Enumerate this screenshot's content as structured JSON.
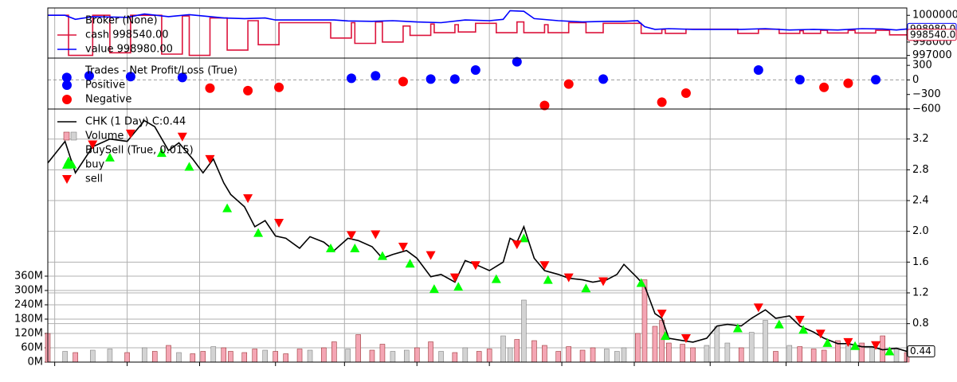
{
  "chart_data": [
    {
      "type": "line",
      "legend_title": "Broker (None)",
      "grid": "x",
      "xlim": [
        0,
        249
      ],
      "xticks": [
        2,
        23,
        44,
        66,
        86,
        107,
        128,
        149,
        170,
        192,
        214,
        235
      ],
      "ylim": [
        996800,
        1000550
      ],
      "yticks": [
        997000,
        998000,
        999000,
        1000000
      ],
      "series": [
        {
          "name": "cash 998540.00",
          "color": "#dc143c",
          "last_value_label": "998540.0",
          "x": [
            0,
            6,
            6,
            13,
            13,
            18,
            18,
            24,
            24,
            33,
            33,
            39,
            39,
            41,
            41,
            47,
            47,
            52,
            52,
            58,
            58,
            61,
            61,
            67,
            67,
            82,
            82,
            88,
            88,
            89,
            89,
            95,
            95,
            97,
            97,
            103,
            103,
            105,
            105,
            111,
            111,
            112,
            112,
            118,
            118,
            119,
            119,
            124,
            124,
            130,
            130,
            136,
            136,
            138,
            138,
            144,
            144,
            145,
            145,
            151,
            151,
            156,
            156,
            161,
            161,
            172,
            172,
            178,
            178,
            179,
            179,
            185,
            185,
            200,
            200,
            206,
            206,
            212,
            212,
            218,
            218,
            219,
            219,
            224,
            224,
            226,
            226,
            232,
            232,
            234,
            234,
            240,
            240,
            244,
            244,
            249
          ],
          "values": [
            1000000,
            1000000,
            997000,
            997000,
            1000000,
            1000000,
            997200,
            997200,
            1000000,
            1000000,
            997100,
            997100,
            999950,
            999950,
            997000,
            997000,
            999800,
            999800,
            997400,
            997400,
            999600,
            999600,
            997800,
            997800,
            999450,
            999450,
            998300,
            998300,
            999450,
            999450,
            997900,
            997900,
            999500,
            999500,
            998000,
            998000,
            999200,
            999200,
            998500,
            998500,
            999350,
            999350,
            998700,
            998700,
            999300,
            999300,
            998750,
            998750,
            999400,
            999400,
            998700,
            998700,
            999500,
            999500,
            998700,
            998700,
            999300,
            999300,
            998700,
            998700,
            999450,
            999450,
            998700,
            998700,
            999400,
            999400,
            998650,
            998650,
            998950,
            998950,
            998650,
            998650,
            998960,
            998960,
            998650,
            998650,
            998960,
            998960,
            998650,
            998650,
            998850,
            998850,
            998650,
            998650,
            998880,
            998880,
            998680,
            998680,
            998880,
            998880,
            998680,
            998680,
            998880,
            998880,
            998540,
            998540
          ]
        },
        {
          "name": "value 998980.00",
          "color": "#0000ff",
          "last_value_label": "998980.0",
          "x": [
            0,
            5,
            8,
            13,
            23,
            28,
            35,
            41,
            45,
            51,
            57,
            63,
            66,
            73,
            83,
            87,
            94,
            100,
            107,
            114,
            121,
            128,
            132,
            134,
            138,
            141,
            148,
            155,
            162,
            167,
            171,
            173,
            176,
            180,
            187,
            197,
            201,
            208,
            215,
            222,
            229,
            236,
            242,
            246,
            249
          ],
          "values": [
            1000000,
            1000000,
            999700,
            999900,
            999850,
            1000100,
            999900,
            1000050,
            999950,
            999800,
            999750,
            999800,
            999650,
            999650,
            999650,
            999580,
            999550,
            999600,
            999500,
            999450,
            999650,
            999600,
            999700,
            1000350,
            1000300,
            999750,
            999600,
            999500,
            999550,
            999550,
            999600,
            999150,
            998950,
            999000,
            998950,
            998950,
            998950,
            999000,
            998900,
            998950,
            998900,
            999000,
            998980,
            998900,
            998980
          ]
        }
      ]
    },
    {
      "type": "scatter",
      "legend_title": "Trades - Net Profit/Loss (True)",
      "grid": "x",
      "zero_line": true,
      "xlim": [
        0,
        249
      ],
      "xticks": [
        2,
        23,
        44,
        66,
        86,
        107,
        128,
        149,
        170,
        192,
        214,
        235
      ],
      "ylim": [
        -600,
        450
      ],
      "yticks": [
        {
          "value": -600,
          "label": "−600"
        },
        {
          "value": -300,
          "label": "−300"
        },
        0,
        300
      ],
      "series": [
        {
          "name": "Positive",
          "color": "#0000ff",
          "marker": "circle",
          "x": [
            5.5,
            12,
            24,
            39,
            88,
            95,
            111,
            118,
            124,
            136,
            161,
            206,
            218,
            240
          ],
          "values": [
            51,
            85,
            68,
            51,
            34,
            85,
            17,
            17,
            204,
            374,
            17,
            204,
            5,
            5
          ]
        },
        {
          "name": "Negative",
          "color": "#ff0000",
          "marker": "circle",
          "x": [
            47,
            58,
            67,
            103,
            144,
            151,
            178,
            185,
            225,
            232
          ],
          "values": [
            -170,
            -221,
            -153,
            -34,
            -527,
            -85,
            -459,
            -272,
            -153,
            -68
          ]
        }
      ]
    },
    {
      "type": "line",
      "indicator_title": "BuySell (True, 0.015)",
      "grid": "both",
      "xlim": [
        0,
        249
      ],
      "xticks": [
        2,
        23,
        44,
        66,
        86,
        107,
        128,
        149,
        170,
        192,
        214,
        235
      ],
      "ylim": [
        0.3,
        3.59
      ],
      "yticks": [
        0.8,
        1.2,
        1.6,
        {
          "value": 2,
          "label": "2.0"
        },
        2.4,
        2.8,
        3.2
      ],
      "y2lim": [
        0,
        1060
      ],
      "y2ticks": [
        {
          "value": 0,
          "label": "0M"
        },
        {
          "value": 60,
          "label": "60M"
        },
        {
          "value": 120,
          "label": "120M"
        },
        {
          "value": 180,
          "label": "180M"
        },
        {
          "value": 240,
          "label": "240M"
        },
        {
          "value": 300,
          "label": "300M"
        },
        {
          "value": 360,
          "label": "360M"
        }
      ],
      "series": [
        {
          "name": "CHK (1 Day) C:0.44",
          "color": "#000000",
          "last_value_label": "0.44",
          "x": [
            0,
            5,
            8,
            13,
            18,
            23,
            28,
            31,
            35,
            38,
            42,
            45,
            48,
            51,
            53,
            57,
            60,
            63,
            66,
            69,
            73,
            76,
            80,
            83,
            87,
            90,
            94,
            97,
            100,
            104,
            107,
            111,
            114,
            118,
            121,
            125,
            128,
            132,
            134,
            136,
            138,
            141,
            144,
            148,
            151,
            155,
            158,
            162,
            165,
            167,
            171,
            173,
            176,
            178,
            180,
            184,
            187,
            191,
            194,
            197,
            201,
            204,
            208,
            211,
            215,
            218,
            222,
            225,
            229,
            232,
            236,
            239,
            242,
            246,
            249
          ],
          "values": [
            2.89,
            3.17,
            2.76,
            3.1,
            3.2,
            3.17,
            3.44,
            3.36,
            3.05,
            3.15,
            2.94,
            2.76,
            2.94,
            2.63,
            2.48,
            2.32,
            2.06,
            2.14,
            1.94,
            1.91,
            1.78,
            1.93,
            1.86,
            1.75,
            1.91,
            1.88,
            1.8,
            1.65,
            1.7,
            1.75,
            1.65,
            1.41,
            1.44,
            1.34,
            1.62,
            1.55,
            1.49,
            1.6,
            1.91,
            1.86,
            2.06,
            1.65,
            1.49,
            1.44,
            1.39,
            1.37,
            1.34,
            1.37,
            1.44,
            1.57,
            1.39,
            1.29,
            0.93,
            0.87,
            0.61,
            0.58,
            0.56,
            0.61,
            0.77,
            0.79,
            0.77,
            0.87,
            0.98,
            0.87,
            0.9,
            0.77,
            0.69,
            0.61,
            0.54,
            0.54,
            0.5,
            0.5,
            0.46,
            0.48,
            0.44
          ]
        },
        {
          "name": "Volume",
          "type": "bar",
          "axis": "y2",
          "color": "#f4a6b4",
          "up_color": "#d3d3d3",
          "x": [
            0,
            5,
            8,
            13,
            18,
            23,
            28,
            31,
            35,
            38,
            42,
            45,
            48,
            51,
            53,
            57,
            60,
            63,
            66,
            69,
            73,
            76,
            80,
            83,
            87,
            90,
            94,
            97,
            100,
            104,
            107,
            111,
            114,
            118,
            121,
            125,
            128,
            132,
            134,
            136,
            138,
            141,
            144,
            148,
            151,
            155,
            158,
            162,
            165,
            167,
            171,
            173,
            176,
            178,
            180,
            184,
            187,
            191,
            194,
            197,
            201,
            204,
            208,
            211,
            215,
            218,
            222,
            225,
            229,
            232,
            236,
            239,
            242,
            246,
            249
          ],
          "values": [
            120,
            45,
            40,
            50,
            55,
            40,
            60,
            45,
            70,
            40,
            35,
            45,
            65,
            60,
            45,
            40,
            55,
            50,
            45,
            35,
            55,
            50,
            60,
            85,
            55,
            115,
            50,
            75,
            45,
            50,
            60,
            85,
            45,
            40,
            60,
            45,
            55,
            110,
            60,
            95,
            260,
            90,
            70,
            45,
            65,
            50,
            60,
            55,
            45,
            60,
            120,
            345,
            150,
            175,
            80,
            75,
            60,
            70,
            150,
            80,
            60,
            125,
            175,
            45,
            70,
            65,
            55,
            50,
            90,
            70,
            80,
            60,
            110,
            55,
            40
          ]
        },
        {
          "name": "buy",
          "type": "scatter",
          "marker": "triangle-up",
          "color": "#00ff00",
          "x": [
            6,
            7,
            18,
            33,
            41,
            52,
            61,
            82,
            89,
            97,
            105,
            112,
            119,
            130,
            138,
            145,
            156,
            172,
            179,
            200,
            212,
            219,
            226,
            234,
            244
          ],
          "values": [
            2.91,
            2.87,
            2.96,
            3.02,
            2.84,
            2.3,
            1.98,
            1.78,
            1.78,
            1.68,
            1.58,
            1.25,
            1.28,
            1.38,
            1.91,
            1.37,
            1.26,
            1.33,
            0.64,
            0.74,
            0.79,
            0.72,
            0.55,
            0.51,
            0.44
          ]
        },
        {
          "name": "sell",
          "type": "scatter",
          "marker": "triangle-down",
          "color": "#ff0000",
          "x": [
            13,
            24,
            39,
            47,
            58,
            67,
            88,
            95,
            103,
            111,
            118,
            124,
            136,
            144,
            151,
            161,
            178,
            185,
            206,
            218,
            224,
            232,
            240
          ],
          "values": [
            3.13,
            3.27,
            3.23,
            2.94,
            2.43,
            2.11,
            1.95,
            1.96,
            1.8,
            1.69,
            1.4,
            1.56,
            1.83,
            1.56,
            1.4,
            1.35,
            0.93,
            0.61,
            1.01,
            0.85,
            0.67,
            0.56,
            0.52
          ]
        }
      ]
    }
  ]
}
